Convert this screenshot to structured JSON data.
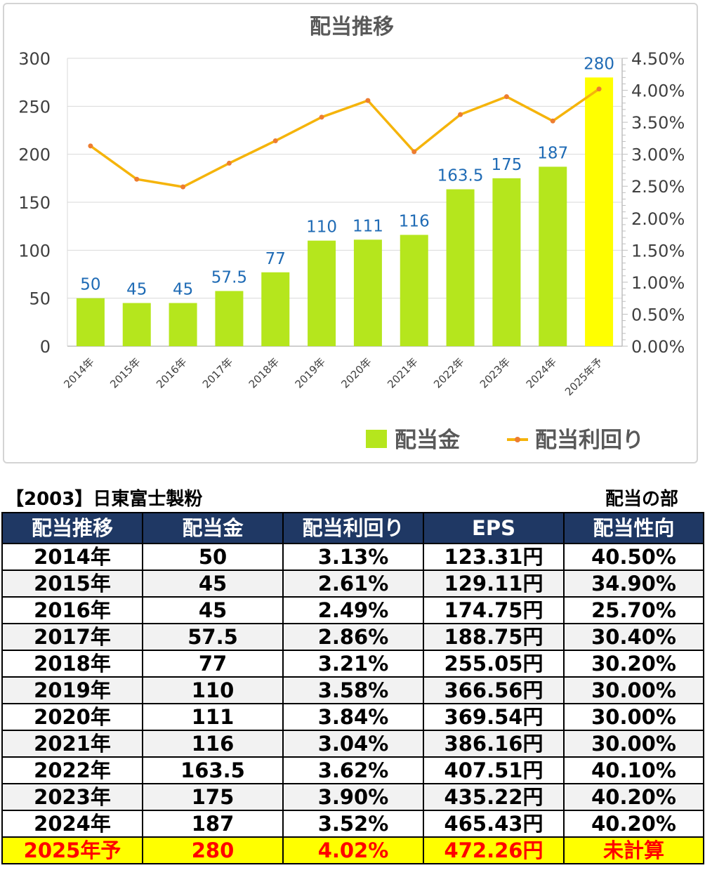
{
  "chart_data": {
    "type": "bar+line",
    "title": "配当推移",
    "categories": [
      "2014年",
      "2015年",
      "2016年",
      "2017年",
      "2018年",
      "2019年",
      "2020年",
      "2021年",
      "2022年",
      "2023年",
      "2024年",
      "2025年予"
    ],
    "series": [
      {
        "name": "配当金",
        "type": "bar",
        "axis": "left",
        "color": "#b5e61d",
        "highlight_color": "#ffff00",
        "highlight_index": 11,
        "values": [
          50,
          45,
          45,
          57.5,
          77,
          110,
          111,
          116,
          163.5,
          175,
          187,
          280
        ],
        "labels": [
          "50",
          "45",
          "45",
          "57.5",
          "77",
          "110",
          "111",
          "116",
          "163.5",
          "175",
          "187",
          "280"
        ]
      },
      {
        "name": "配当利回り",
        "type": "line",
        "axis": "right",
        "color": "#f5b40b",
        "marker_color": "#ed7d31",
        "values": [
          3.13,
          2.61,
          2.49,
          2.86,
          3.21,
          3.58,
          3.84,
          3.04,
          3.62,
          3.9,
          3.52,
          4.02
        ]
      }
    ],
    "y_left": {
      "min": 0,
      "max": 300,
      "ticks": [
        "0",
        "50",
        "100",
        "150",
        "200",
        "250",
        "300"
      ]
    },
    "y_right": {
      "min": 0,
      "max": 4.5,
      "ticks": [
        "0.00%",
        "0.50%",
        "1.00%",
        "1.50%",
        "2.00%",
        "2.50%",
        "3.00%",
        "3.50%",
        "4.00%",
        "4.50%"
      ]
    },
    "label_color": "#1f6bb5",
    "grid": true,
    "legend": "bottom-right"
  },
  "table": {
    "title": "【2003】日東富士製粉",
    "section_label": "配当の部",
    "headers": [
      "配当推移",
      "配当金",
      "配当利回り",
      "EPS",
      "配当性向"
    ],
    "rows": [
      [
        "2014年",
        "50",
        "3.13%",
        "123.31円",
        "40.50%"
      ],
      [
        "2015年",
        "45",
        "2.61%",
        "129.11円",
        "34.90%"
      ],
      [
        "2016年",
        "45",
        "2.49%",
        "174.75円",
        "25.70%"
      ],
      [
        "2017年",
        "57.5",
        "2.86%",
        "188.75円",
        "30.40%"
      ],
      [
        "2018年",
        "77",
        "3.21%",
        "255.05円",
        "30.20%"
      ],
      [
        "2019年",
        "110",
        "3.58%",
        "366.56円",
        "30.00%"
      ],
      [
        "2020年",
        "111",
        "3.84%",
        "369.54円",
        "30.00%"
      ],
      [
        "2021年",
        "116",
        "3.04%",
        "386.16円",
        "30.00%"
      ],
      [
        "2022年",
        "163.5",
        "3.62%",
        "407.51円",
        "40.10%"
      ],
      [
        "2023年",
        "175",
        "3.90%",
        "435.22円",
        "40.20%"
      ],
      [
        "2024年",
        "187",
        "3.52%",
        "465.43円",
        "40.20%"
      ],
      [
        "2025年予",
        "280",
        "4.02%",
        "472.26円",
        "未計算"
      ]
    ]
  }
}
